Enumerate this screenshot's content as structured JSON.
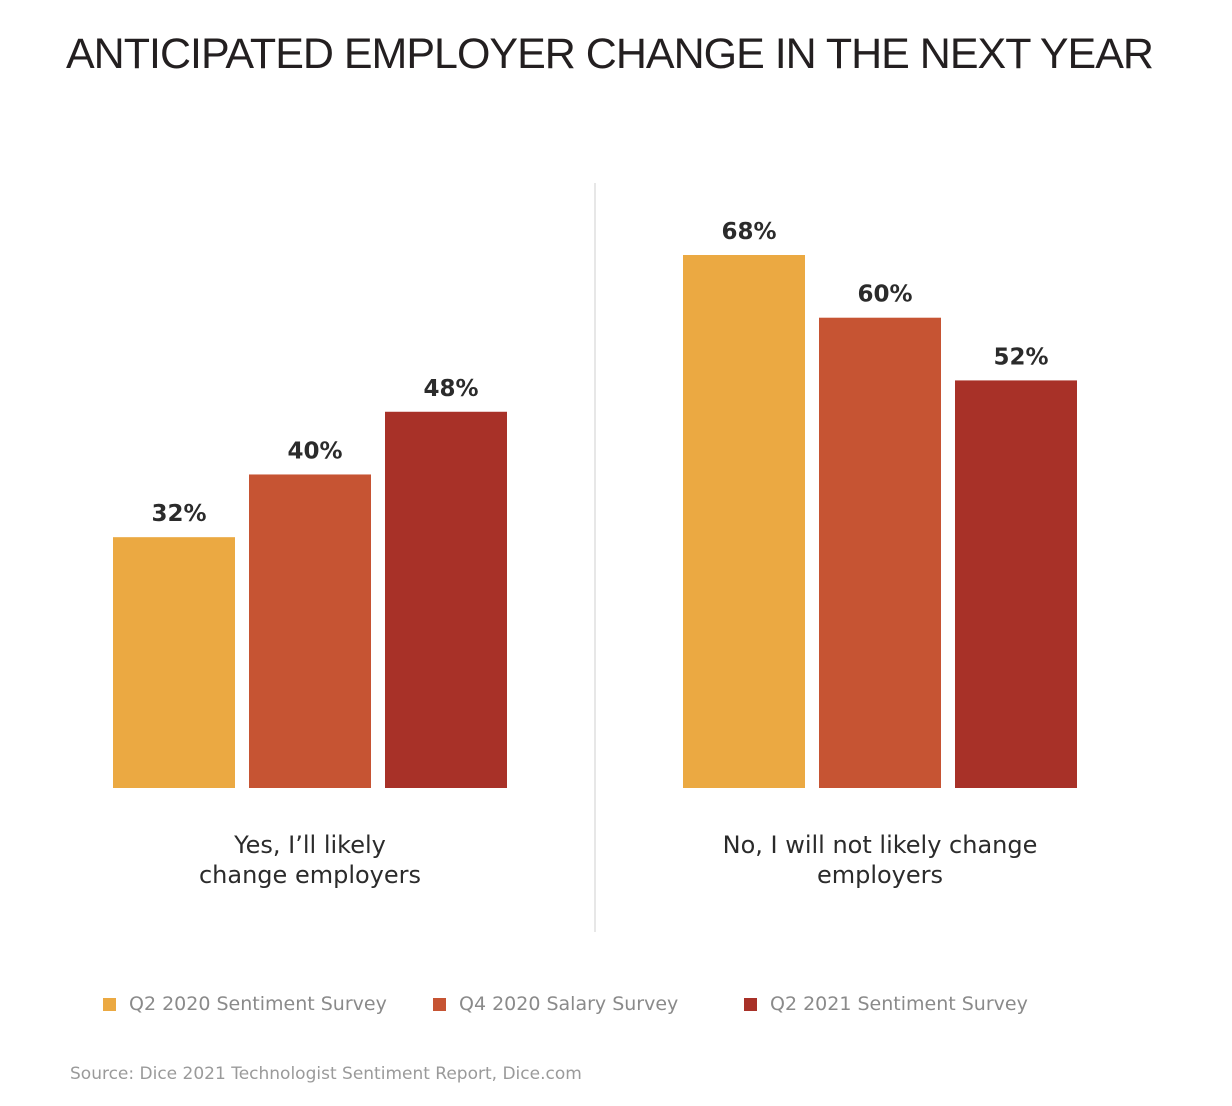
{
  "chart_data": {
    "type": "bar",
    "title": "ANTICIPATED EMPLOYER CHANGE IN THE NEXT YEAR",
    "categories": [
      "Yes, I’ll likely|change employers",
      "No, I will not likely change|employers"
    ],
    "series": [
      {
        "name": "Q2 2020 Sentiment Survey",
        "values": [
          32,
          68
        ],
        "labels": [
          "32%",
          "68%"
        ],
        "color": "#eba942"
      },
      {
        "name": "Q4 2020 Salary Survey",
        "values": [
          40,
          60
        ],
        "labels": [
          "40%",
          "60%"
        ],
        "color": "#c65433"
      },
      {
        "name": "Q2 2021 Sentiment Survey",
        "values": [
          48,
          52
        ],
        "labels": [
          "48%",
          "52%"
        ],
        "color": "#a83128"
      }
    ],
    "ylim": [
      0,
      68
    ],
    "grid": false,
    "legend_position": "bottom",
    "unit": "%"
  },
  "source": "Source: Dice 2021 Technologist Sentiment Report, Dice.com"
}
